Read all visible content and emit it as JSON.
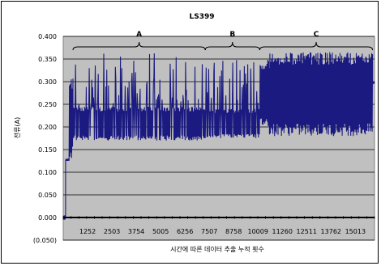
{
  "chart_data": {
    "type": "line",
    "title": "LS399",
    "xlabel": "시간에 따른 데이터 추출 누적 횟수",
    "ylabel": "전류(A)",
    "ylim": [
      -0.05,
      0.4
    ],
    "xlim": [
      0,
      16000
    ],
    "grid": true,
    "colors": {
      "plot_bg": "#c0c0c0",
      "series": "#1a1a80",
      "zero_line": "#000000",
      "negative_tick": "#ff0000"
    },
    "y_ticks": [
      "0.400",
      "0.350",
      "0.300",
      "0.250",
      "0.200",
      "0.150",
      "0.100",
      "0.050",
      "0.000",
      "(0.050)"
    ],
    "x_ticks": [
      "1252",
      "2503",
      "3754",
      "5005",
      "6256",
      "7507",
      "8758",
      "10009",
      "11260",
      "12511",
      "13762",
      "15013"
    ],
    "regions": [
      {
        "label": "A",
        "x_start": 500,
        "x_end": 7300
      },
      {
        "label": "B",
        "x_start": 7300,
        "x_end": 10100
      },
      {
        "label": "C",
        "x_start": 10100,
        "x_end": 15900
      }
    ],
    "series": [
      {
        "segments": [
          {
            "x_start": 0,
            "x_end": 120,
            "low": -0.005,
            "high": 0.005
          },
          {
            "x_start": 120,
            "x_end": 300,
            "low": 0.125,
            "high": 0.13
          },
          {
            "x_start": 300,
            "x_end": 500,
            "low": 0.13,
            "high": 0.31
          },
          {
            "x_start": 500,
            "x_end": 7300,
            "low": 0.17,
            "high": 0.245,
            "spike_max": 0.365
          },
          {
            "x_start": 7300,
            "x_end": 10100,
            "low": 0.175,
            "high": 0.24,
            "spike_max": 0.355
          },
          {
            "x_start": 10100,
            "x_end": 10600,
            "low": 0.2,
            "high": 0.35
          },
          {
            "x_start": 10600,
            "x_end": 15900,
            "low": 0.18,
            "high": 0.365
          },
          {
            "x_start": 15900,
            "x_end": 16000,
            "low": 0.295,
            "high": 0.3
          }
        ]
      }
    ]
  }
}
